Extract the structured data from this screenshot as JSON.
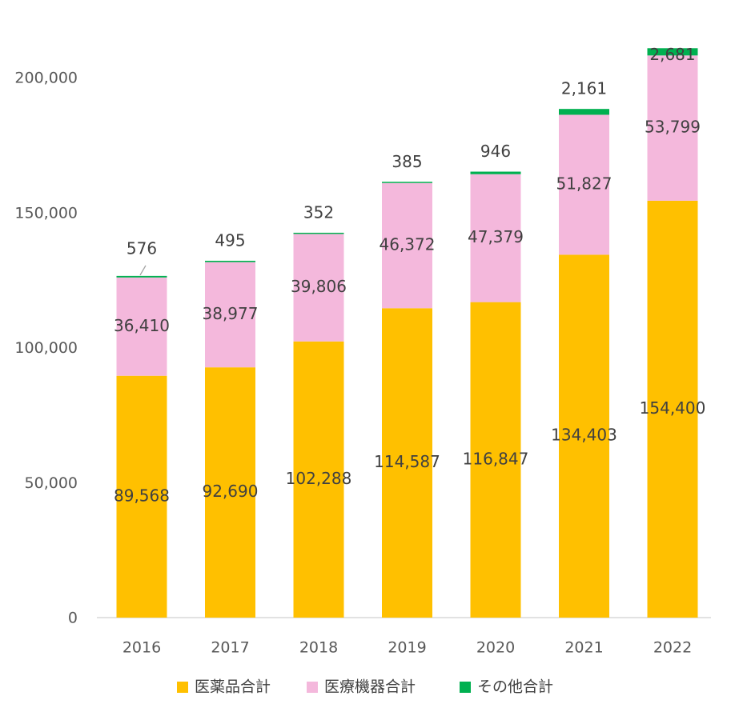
{
  "chart_data": {
    "type": "bar",
    "stacked": true,
    "categories": [
      "2016",
      "2017",
      "2018",
      "2019",
      "2020",
      "2021",
      "2022"
    ],
    "series": [
      {
        "name": "医薬品合計",
        "values": [
          89568,
          92690,
          102288,
          114587,
          116847,
          134403,
          154400
        ],
        "color": "#FFC000"
      },
      {
        "name": "医療機器合計",
        "values": [
          36410,
          38977,
          39806,
          46372,
          47379,
          51827,
          53799
        ],
        "color": "#F4B8DC"
      },
      {
        "name": "その他合計",
        "values": [
          576,
          495,
          352,
          385,
          946,
          2161,
          2681
        ],
        "color": "#00B050"
      }
    ],
    "ylim": [
      0,
      200000
    ],
    "yticks": [
      0,
      50000,
      100000,
      150000,
      200000
    ],
    "ytick_labels": [
      "0",
      "50,000",
      "100,000",
      "150,000",
      "200,000"
    ],
    "grid": false,
    "legend_position": "bottom",
    "title": "",
    "xlabel": "",
    "ylabel": ""
  }
}
